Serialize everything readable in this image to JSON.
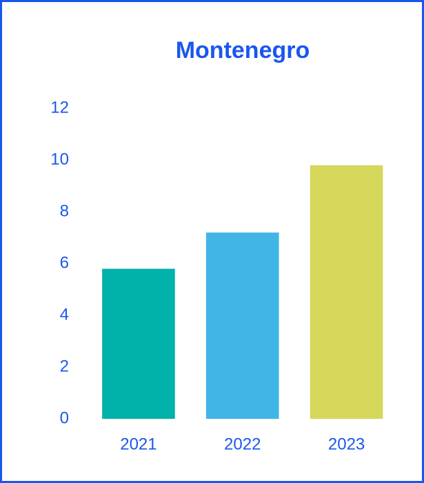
{
  "chart_data": {
    "type": "bar",
    "title": "Montenegro",
    "categories": [
      "2021",
      "2022",
      "2023"
    ],
    "values": [
      5.8,
      7.2,
      9.8
    ],
    "colors": [
      "#00b2a9",
      "#41b6e6",
      "#d4d75a"
    ],
    "ylim": [
      0,
      12
    ],
    "yticks": [
      0,
      2,
      4,
      6,
      8,
      10,
      12
    ],
    "grid": false
  }
}
